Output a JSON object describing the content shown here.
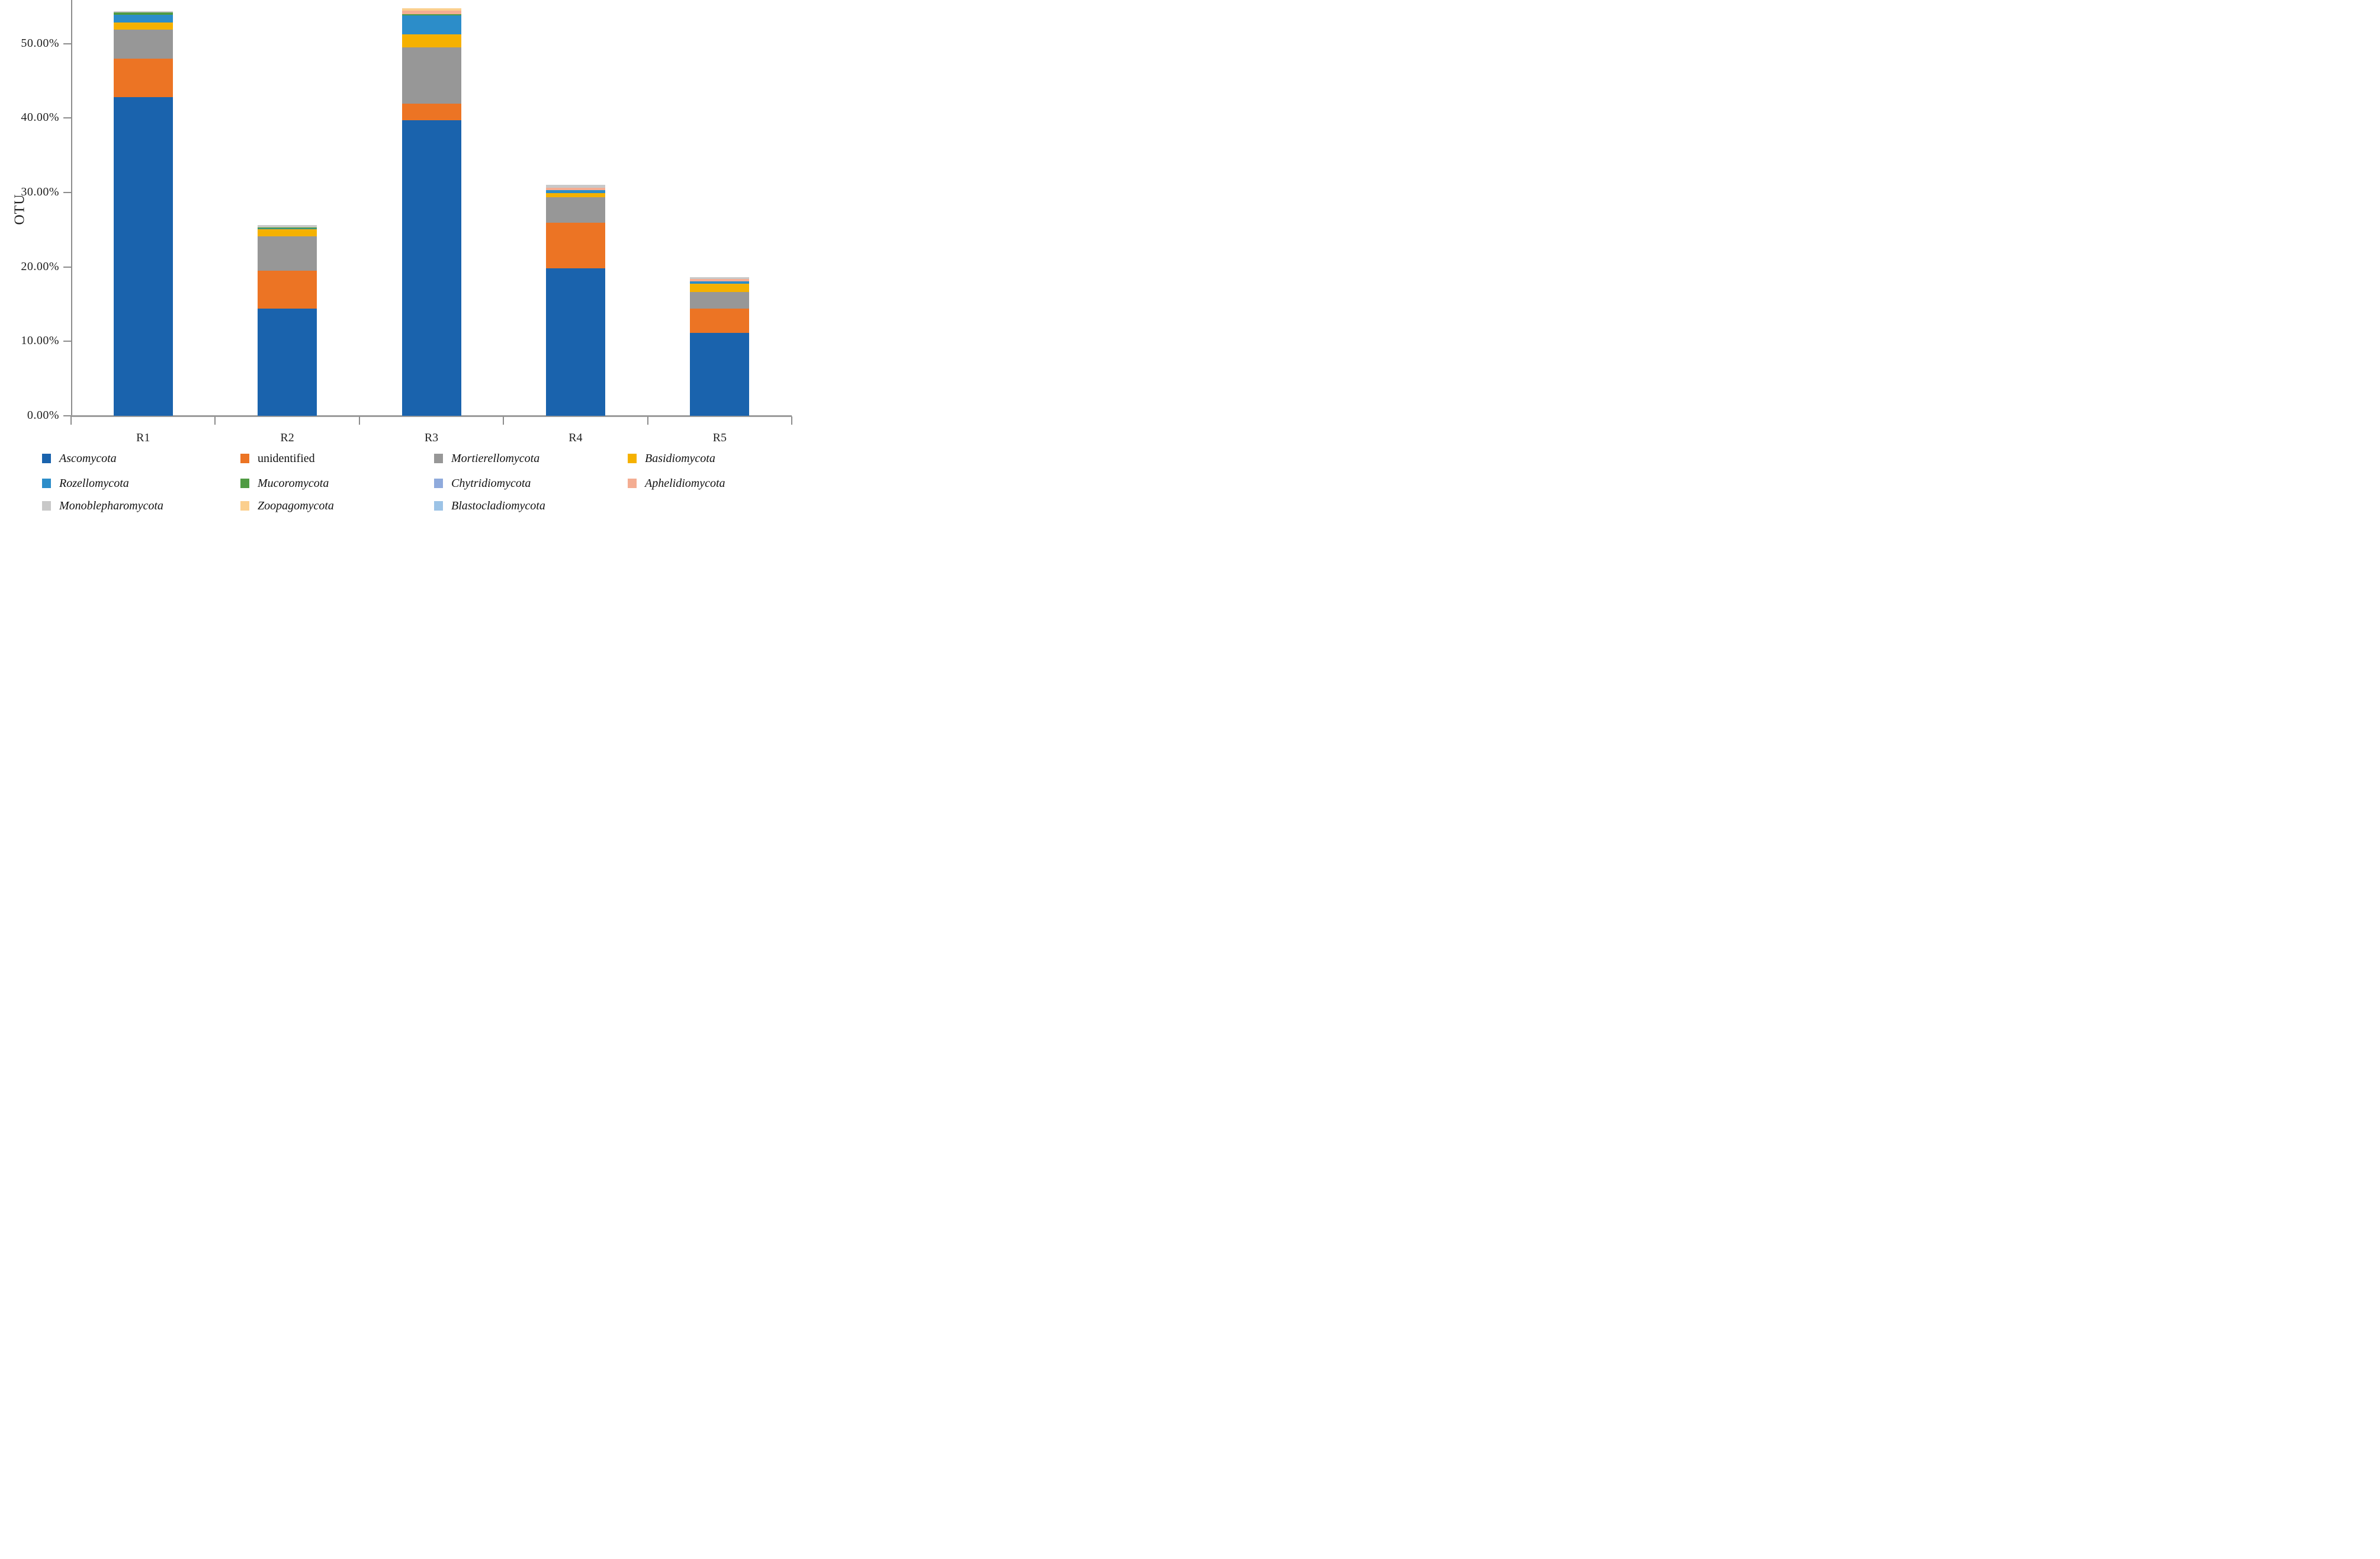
{
  "chart_data": {
    "type": "bar",
    "stacked": true,
    "title": "",
    "ylabel": "OTU",
    "xlabel": "",
    "categories": [
      "R1",
      "R2",
      "R3",
      "R4",
      "R5"
    ],
    "series": [
      {
        "name": "Ascomycota",
        "color": "#1A63AD",
        "italic": true,
        "values": [
          42.8,
          14.4,
          39.7,
          19.8,
          11.1
        ]
      },
      {
        "name": "unidentified",
        "color": "#EC7424",
        "italic": false,
        "values": [
          5.2,
          5.1,
          2.2,
          6.1,
          3.3
        ]
      },
      {
        "name": "Mortierellomycota",
        "color": "#979797",
        "italic": true,
        "values": [
          3.9,
          4.6,
          7.55,
          3.45,
          2.2
        ]
      },
      {
        "name": "Basidiomycota",
        "color": "#F5B100",
        "italic": true,
        "values": [
          0.9,
          0.95,
          1.8,
          0.6,
          1.15
        ]
      },
      {
        "name": "Rozellomycota",
        "color": "#2C8DC9",
        "italic": true,
        "values": [
          1.1,
          0.1,
          2.5,
          0.35,
          0.3
        ]
      },
      {
        "name": "Mucoromycota",
        "color": "#4F9B43",
        "italic": true,
        "values": [
          0.3,
          0.15,
          0.2,
          0.0,
          0.0
        ]
      },
      {
        "name": "Chytridiomycota",
        "color": "#8FAADC",
        "italic": true,
        "values": [
          0.0,
          0.0,
          0.0,
          0.0,
          0.0
        ]
      },
      {
        "name": "Aphelidiomycota",
        "color": "#F4AD92",
        "italic": true,
        "values": [
          0.0,
          0.0,
          0.45,
          0.35,
          0.3
        ]
      },
      {
        "name": "Monoblepharomycota",
        "color": "#C8C8C8",
        "italic": true,
        "values": [
          0.15,
          0.3,
          0.0,
          0.4,
          0.3
        ]
      },
      {
        "name": "Zoopagomycota",
        "color": "#FBCF8E",
        "italic": true,
        "values": [
          0.0,
          0.0,
          0.3,
          0.0,
          0.0
        ]
      },
      {
        "name": "Blastocladiomycota",
        "color": "#9CC3E6",
        "italic": true,
        "values": [
          0.0,
          0.0,
          0.0,
          0.0,
          0.0
        ]
      }
    ],
    "y_ticks": [
      "0.00%",
      "10.00%",
      "20.00%",
      "30.00%",
      "40.00%",
      "50.00%"
    ],
    "y_tick_values": [
      0,
      10,
      20,
      30,
      40,
      50
    ],
    "ylim": [
      0,
      55.8
    ],
    "grid": false,
    "legend_position": "bottom",
    "legend_columns": 4
  },
  "colors": {
    "axis_line": "#8c8c8c",
    "x_axis_line": "#9b9b9b",
    "text": "#1f1f1f",
    "background": "#ffffff"
  }
}
